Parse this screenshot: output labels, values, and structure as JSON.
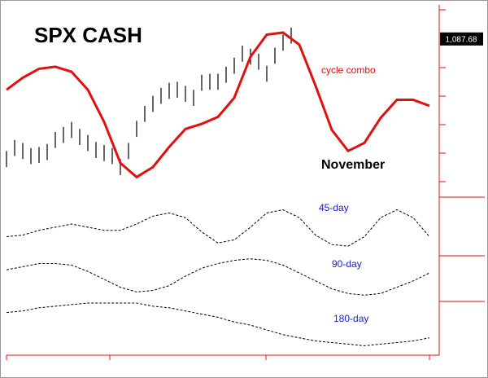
{
  "chart_data": [
    {
      "type": "line",
      "title": "SPX CASH",
      "annotation": "November",
      "xlim": [
        0,
        106.4
      ],
      "ylim": [
        930,
        1120
      ],
      "last_price": {
        "value": 1087.68,
        "label": "1,087.68"
      },
      "x": [
        0,
        4,
        8,
        12,
        16,
        20,
        24,
        28,
        32,
        36,
        40,
        44,
        48,
        52,
        56,
        60,
        64,
        68,
        72,
        76,
        80,
        84,
        88,
        92,
        96,
        100,
        104
      ],
      "series": [
        {
          "name": "cycle combo",
          "color": "#e01010",
          "width": 3,
          "values": [
            1037,
            1049,
            1058,
            1060,
            1055,
            1037,
            1005,
            964,
            950,
            960,
            980,
            998,
            1003,
            1010,
            1029,
            1070,
            1092,
            1094,
            1082,
            1041,
            997,
            976,
            984,
            1009,
            1027,
            1027,
            1021
          ]
        }
      ],
      "bars": {
        "color": "#000000",
        "x": [
          0,
          2,
          4,
          6,
          8,
          10,
          12,
          14,
          16,
          18,
          20,
          22,
          24,
          26,
          28,
          30,
          32,
          34,
          36,
          38,
          40,
          42,
          44,
          46,
          48,
          50,
          52,
          54,
          56,
          58,
          60,
          62,
          64,
          66,
          68,
          70
        ],
        "high": [
          976,
          987,
          984,
          979,
          980,
          983,
          995,
          1000,
          1005,
          998,
          992,
          985,
          982,
          979,
          968,
          984,
          1006,
          1021,
          1031,
          1039,
          1044,
          1045,
          1041,
          1037,
          1052,
          1053,
          1053,
          1060,
          1069,
          1081,
          1078,
          1073,
          1061,
          1079,
          1092,
          1099
        ],
        "low": [
          960,
          971,
          968,
          963,
          964,
          967,
          979,
          984,
          989,
          982,
          976,
          969,
          966,
          963,
          952,
          968,
          990,
          1005,
          1015,
          1023,
          1028,
          1029,
          1025,
          1021,
          1036,
          1037,
          1037,
          1044,
          1053,
          1065,
          1062,
          1057,
          1045,
          1063,
          1076,
          1083
        ]
      }
    },
    {
      "type": "line",
      "xlim": [
        0,
        106.4
      ],
      "ylim": [
        0,
        100
      ],
      "label_color": "#1a1acc",
      "x": [
        0,
        4,
        8,
        12,
        16,
        20,
        24,
        28,
        32,
        36,
        40,
        44,
        48,
        52,
        56,
        60,
        64,
        68,
        72,
        76,
        80,
        84,
        88,
        92,
        96,
        100,
        104
      ],
      "series": [
        {
          "name": "45-day",
          "color": "#000000",
          "dash": "3,2",
          "values": [
            75,
            76,
            79,
            81,
            83,
            81,
            79,
            79,
            83,
            88,
            90,
            87,
            78,
            71,
            73,
            81,
            90,
            92,
            87,
            76,
            70,
            69,
            75,
            87,
            92,
            87,
            75
          ]
        },
        {
          "name": "90-day",
          "color": "#000000",
          "dash": "3,2",
          "values": [
            54,
            56,
            58,
            58,
            57,
            53,
            48,
            43,
            40,
            41,
            44,
            50,
            55,
            58,
            60,
            61,
            60,
            57,
            52,
            47,
            42,
            39,
            38,
            39,
            43,
            47,
            52
          ]
        },
        {
          "name": "180-day",
          "color": "#000000",
          "dash": "3,2",
          "values": [
            27,
            28,
            30,
            31,
            32,
            33,
            33,
            33,
            33,
            31,
            30,
            28,
            26,
            24,
            21,
            19,
            16,
            13,
            11,
            9,
            8,
            7,
            6,
            7,
            8,
            9,
            11
          ]
        }
      ]
    }
  ]
}
